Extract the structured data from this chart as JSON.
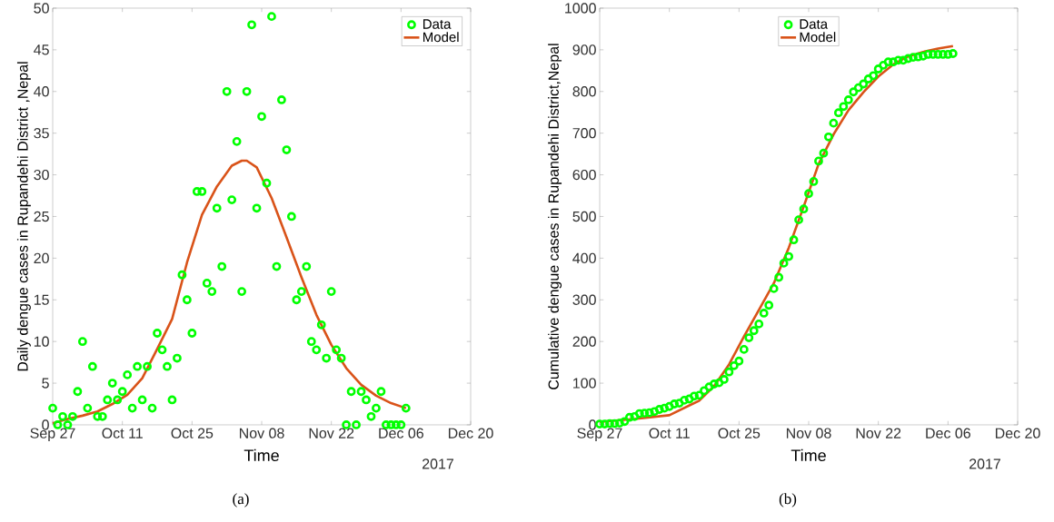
{
  "chart_data": [
    {
      "type": "scatter",
      "xlabel": "Time",
      "ylabel": "Daily dengue cases in Rupandehi District ,Nepal",
      "xlim": [
        "2017-09-27",
        "2017-12-20"
      ],
      "xticks": [
        {
          "value": "2017-09-27",
          "label": "Sep 27"
        },
        {
          "value": "2017-10-11",
          "label": "Oct 11"
        },
        {
          "value": "2017-10-25",
          "label": "Oct 25"
        },
        {
          "value": "2017-11-08",
          "label": "Nov 08"
        },
        {
          "value": "2017-11-22",
          "label": "Nov 22"
        },
        {
          "value": "2017-12-06",
          "label": "Dec 06"
        },
        {
          "value": "2017-12-20",
          "label": "Dec 20"
        }
      ],
      "ylim": [
        0,
        50
      ],
      "yticks": [
        0,
        5,
        10,
        15,
        20,
        25,
        30,
        35,
        40,
        45,
        50
      ],
      "legend": "top right",
      "x": [
        "2017-09-27",
        "2017-09-28",
        "2017-09-29",
        "2017-09-30",
        "2017-10-01",
        "2017-10-02",
        "2017-10-03",
        "2017-10-04",
        "2017-10-05",
        "2017-10-06",
        "2017-10-07",
        "2017-10-08",
        "2017-10-09",
        "2017-10-10",
        "2017-10-11",
        "2017-10-12",
        "2017-10-13",
        "2017-10-14",
        "2017-10-15",
        "2017-10-16",
        "2017-10-17",
        "2017-10-18",
        "2017-10-19",
        "2017-10-20",
        "2017-10-21",
        "2017-10-22",
        "2017-10-23",
        "2017-10-24",
        "2017-10-25",
        "2017-10-26",
        "2017-10-27",
        "2017-10-28",
        "2017-10-29",
        "2017-10-30",
        "2017-10-31",
        "2017-11-01",
        "2017-11-02",
        "2017-11-03",
        "2017-11-04",
        "2017-11-05",
        "2017-11-06",
        "2017-11-07",
        "2017-11-08",
        "2017-11-09",
        "2017-11-10",
        "2017-11-11",
        "2017-11-12",
        "2017-11-13",
        "2017-11-14",
        "2017-11-15",
        "2017-11-16",
        "2017-11-17",
        "2017-11-18",
        "2017-11-19",
        "2017-11-20",
        "2017-11-21",
        "2017-11-22",
        "2017-11-23",
        "2017-11-24",
        "2017-11-25",
        "2017-11-26",
        "2017-11-27",
        "2017-11-28",
        "2017-11-29",
        "2017-11-30",
        "2017-12-01",
        "2017-12-02",
        "2017-12-03",
        "2017-12-04",
        "2017-12-05",
        "2017-12-06",
        "2017-12-07"
      ],
      "series": [
        {
          "name": "Data",
          "marker": "circle",
          "color": "#00ff00",
          "values": [
            2,
            0,
            1,
            0,
            1,
            4,
            10,
            2,
            7,
            1,
            1,
            3,
            5,
            3,
            4,
            6,
            2,
            7,
            3,
            7,
            2,
            11,
            9,
            7,
            3,
            8,
            18,
            15,
            11,
            28,
            28,
            17,
            16,
            26,
            19,
            40,
            27,
            34,
            16,
            40,
            48,
            26,
            37,
            29,
            49,
            19,
            39,
            33,
            25,
            15,
            16,
            19,
            10,
            9,
            12,
            8,
            16,
            9,
            8,
            0,
            4,
            0,
            4,
            3,
            1,
            2,
            4,
            0,
            0,
            0,
            0,
            2
          ]
        },
        {
          "name": "Model",
          "type": "line",
          "color": "#d95319",
          "x": [
            "2017-09-27",
            "2017-09-30",
            "2017-10-03",
            "2017-10-06",
            "2017-10-09",
            "2017-10-12",
            "2017-10-15",
            "2017-10-18",
            "2017-10-21",
            "2017-10-24",
            "2017-10-27",
            "2017-10-30",
            "2017-11-02",
            "2017-11-04",
            "2017-11-05",
            "2017-11-07",
            "2017-11-10",
            "2017-11-13",
            "2017-11-16",
            "2017-11-19",
            "2017-11-22",
            "2017-11-25",
            "2017-11-28",
            "2017-12-01",
            "2017-12-04",
            "2017-12-07"
          ],
          "values": [
            0.2,
            0.7,
            1.1,
            1.6,
            2.5,
            3.6,
            5.6,
            9.1,
            12.7,
            19.5,
            25.2,
            28.6,
            31.1,
            31.7,
            31.7,
            30.9,
            27.2,
            22.5,
            17.7,
            13.2,
            9.6,
            6.8,
            4.8,
            3.5,
            2.6,
            2.0
          ]
        }
      ],
      "annotations": [
        "2017",
        "(a)"
      ]
    },
    {
      "type": "scatter",
      "xlabel": "Time",
      "ylabel": "Cumulative dengue cases in Rupandehi District,Nepal",
      "xlim": [
        "2017-09-27",
        "2017-12-20"
      ],
      "xticks": [
        {
          "value": "2017-09-27",
          "label": "Sep 27"
        },
        {
          "value": "2017-10-11",
          "label": "Oct 11"
        },
        {
          "value": "2017-10-25",
          "label": "Oct 25"
        },
        {
          "value": "2017-11-08",
          "label": "Nov 08"
        },
        {
          "value": "2017-11-22",
          "label": "Nov 22"
        },
        {
          "value": "2017-12-06",
          "label": "Dec 06"
        },
        {
          "value": "2017-12-20",
          "label": "Dec 20"
        }
      ],
      "ylim": [
        0,
        1000
      ],
      "yticks": [
        0,
        100,
        200,
        300,
        400,
        500,
        600,
        700,
        800,
        900,
        1000
      ],
      "legend": "top",
      "x": [
        "2017-09-27",
        "2017-09-28",
        "2017-09-29",
        "2017-09-30",
        "2017-10-01",
        "2017-10-02",
        "2017-10-03",
        "2017-10-04",
        "2017-10-05",
        "2017-10-06",
        "2017-10-07",
        "2017-10-08",
        "2017-10-09",
        "2017-10-10",
        "2017-10-11",
        "2017-10-12",
        "2017-10-13",
        "2017-10-14",
        "2017-10-15",
        "2017-10-16",
        "2017-10-17",
        "2017-10-18",
        "2017-10-19",
        "2017-10-20",
        "2017-10-21",
        "2017-10-22",
        "2017-10-23",
        "2017-10-24",
        "2017-10-25",
        "2017-10-26",
        "2017-10-27",
        "2017-10-28",
        "2017-10-29",
        "2017-10-30",
        "2017-10-31",
        "2017-11-01",
        "2017-11-02",
        "2017-11-03",
        "2017-11-04",
        "2017-11-05",
        "2017-11-06",
        "2017-11-07",
        "2017-11-08",
        "2017-11-09",
        "2017-11-10",
        "2017-11-11",
        "2017-11-12",
        "2017-11-13",
        "2017-11-14",
        "2017-11-15",
        "2017-11-16",
        "2017-11-17",
        "2017-11-18",
        "2017-11-19",
        "2017-11-20",
        "2017-11-21",
        "2017-11-22",
        "2017-11-23",
        "2017-11-24",
        "2017-11-25",
        "2017-11-26",
        "2017-11-27",
        "2017-11-28",
        "2017-11-29",
        "2017-11-30",
        "2017-12-01",
        "2017-12-02",
        "2017-12-03",
        "2017-12-04",
        "2017-12-05",
        "2017-12-06",
        "2017-12-07"
      ],
      "series": [
        {
          "name": "Data",
          "marker": "circle",
          "color": "#00ff00",
          "values": [
            2,
            2,
            3,
            3,
            4,
            8,
            18,
            20,
            27,
            28,
            29,
            32,
            37,
            40,
            44,
            50,
            52,
            59,
            62,
            69,
            71,
            82,
            91,
            98,
            101,
            109,
            127,
            142,
            153,
            181,
            209,
            226,
            242,
            268,
            287,
            327,
            354,
            388,
            404,
            444,
            492,
            518,
            555,
            584,
            633,
            652,
            691,
            724,
            749,
            764,
            780,
            799,
            809,
            818,
            830,
            838,
            854,
            863,
            871,
            871,
            875,
            875,
            879,
            882,
            883,
            885,
            889,
            889,
            889,
            889,
            889,
            891
          ]
        },
        {
          "name": "Model",
          "type": "line",
          "color": "#d95319",
          "x": [
            "2017-09-27",
            "2017-10-04",
            "2017-10-11",
            "2017-10-17",
            "2017-10-20",
            "2017-10-23",
            "2017-10-26",
            "2017-10-29",
            "2017-11-01",
            "2017-11-04",
            "2017-11-07",
            "2017-11-10",
            "2017-11-13",
            "2017-11-16",
            "2017-11-19",
            "2017-11-22",
            "2017-11-25",
            "2017-11-28",
            "2017-12-01",
            "2017-12-04",
            "2017-12-07"
          ],
          "values": [
            7,
            14,
            23,
            58,
            93,
            145,
            212,
            276,
            340,
            425,
            524,
            626,
            697,
            755,
            798,
            836,
            865,
            884,
            895,
            903,
            909
          ]
        }
      ],
      "annotations": [
        "2017",
        "(b)"
      ]
    }
  ]
}
